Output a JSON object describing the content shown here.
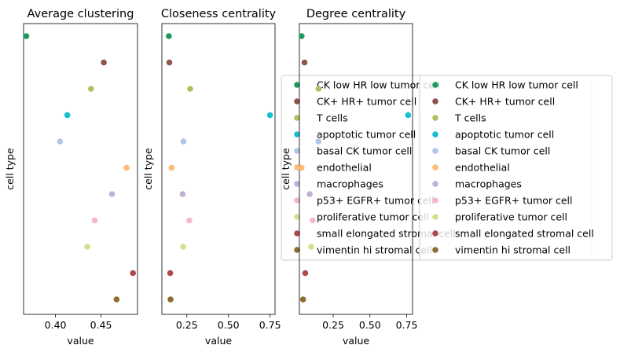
{
  "chart_data": [
    {
      "type": "scatter",
      "title": "Average clustering",
      "xlabel": "value",
      "ylabel": "cell type",
      "xlim": [
        0.365,
        0.49
      ],
      "xticks": [
        0.4,
        0.45
      ],
      "xticklabels": [
        "0.40",
        "0.45"
      ],
      "legend": false,
      "values": [
        0.368,
        0.453,
        0.439,
        0.413,
        0.405,
        0.478,
        0.462,
        0.443,
        0.435,
        0.485,
        0.467
      ]
    },
    {
      "type": "scatter",
      "title": "Closeness centrality",
      "xlabel": "value",
      "ylabel": "cell type",
      "xlim": [
        0.1,
        0.78
      ],
      "xticks": [
        0.25,
        0.5,
        0.75
      ],
      "xticklabels": [
        "0.25",
        "0.50",
        "0.75"
      ],
      "legend": true,
      "legend_placement": "center-left",
      "values": [
        0.142,
        0.145,
        0.27,
        0.75,
        0.23,
        0.158,
        0.225,
        0.265,
        0.228,
        0.15,
        0.152
      ]
    },
    {
      "type": "scatter",
      "title": "Degree centrality",
      "xlabel": "value",
      "ylabel": "cell type",
      "xlim": [
        0.02,
        0.79
      ],
      "xticks": [
        0.25,
        0.5,
        0.75
      ],
      "xticklabels": [
        "0.25",
        "0.50",
        "0.75"
      ],
      "legend": true,
      "legend_placement": "center-right",
      "values": [
        0.035,
        0.055,
        0.15,
        0.76,
        0.15,
        0.035,
        0.09,
        0.11,
        0.1,
        0.06,
        0.045
      ]
    }
  ],
  "categories": [
    "CK low HR low tumor cell",
    "CK+ HR+ tumor cell",
    "T cells",
    "apoptotic tumor cell",
    "basal CK tumor cell",
    "endothelial",
    "macrophages",
    "p53+ EGFR+ tumor cell",
    "proliferative tumor cell",
    "small elongated stromal cell",
    "vimentin hi stromal cell"
  ],
  "colors": [
    "#1f9a5e",
    "#8c564b",
    "#b5bd61",
    "#17becf",
    "#aec7e8",
    "#ffbb78",
    "#c5b0d5",
    "#f7b6d2",
    "#dbdb8d",
    "#ad494a",
    "#8c6d31"
  ]
}
